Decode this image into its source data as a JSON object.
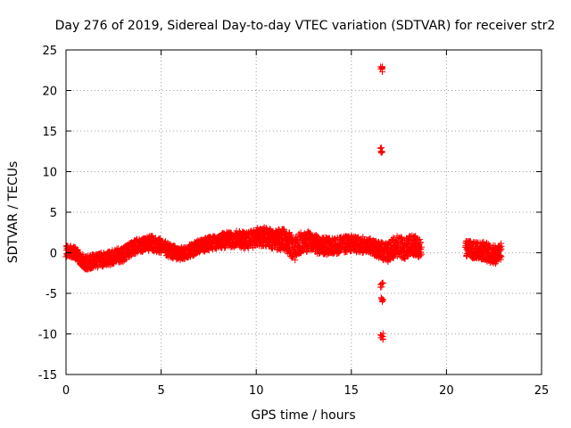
{
  "chart_data": {
    "type": "scatter",
    "title": "Day 276 of 2019, Sidereal Day-to-day VTEC variation (SDTVAR) for receiver str2",
    "xlabel": "GPS time / hours",
    "ylabel": "SDTVAR / TECUs",
    "xlim": [
      0,
      25
    ],
    "ylim": [
      -15,
      25
    ],
    "xticks": [
      "0",
      "5",
      "10",
      "15",
      "20",
      "25"
    ],
    "yticks": [
      "-15",
      "-10",
      "-5",
      "0",
      "5",
      "10",
      "15",
      "20",
      "25"
    ],
    "grid": true,
    "marker": "+",
    "series": [
      {
        "name": "SDTVAR",
        "color": "#ff0000",
        "trend": [
          [
            0.0,
            0.2
          ],
          [
            0.4,
            0.1
          ],
          [
            0.7,
            -0.5
          ],
          [
            1.0,
            -1.3
          ],
          [
            1.5,
            -1.0
          ],
          [
            2.0,
            -0.8
          ],
          [
            2.5,
            -0.5
          ],
          [
            3.0,
            -0.2
          ],
          [
            3.5,
            0.6
          ],
          [
            4.0,
            1.0
          ],
          [
            4.5,
            1.2
          ],
          [
            5.0,
            0.8
          ],
          [
            5.5,
            0.2
          ],
          [
            6.0,
            -0.1
          ],
          [
            6.5,
            0.2
          ],
          [
            7.0,
            0.8
          ],
          [
            7.5,
            1.1
          ],
          [
            8.0,
            1.4
          ],
          [
            8.5,
            1.6
          ],
          [
            9.0,
            1.7
          ],
          [
            9.5,
            1.5
          ],
          [
            10.0,
            1.9
          ],
          [
            10.5,
            2.0
          ],
          [
            11.0,
            1.6
          ],
          [
            11.5,
            1.7
          ],
          [
            12.0,
            0.5
          ],
          [
            12.5,
            1.5
          ],
          [
            13.0,
            1.2
          ],
          [
            13.5,
            0.8
          ],
          [
            14.0,
            0.7
          ],
          [
            14.5,
            1.0
          ],
          [
            15.0,
            1.1
          ],
          [
            15.5,
            1.0
          ],
          [
            16.0,
            0.8
          ],
          [
            16.3,
            0.5
          ],
          [
            16.9,
            0.0
          ],
          [
            17.3,
            0.8
          ],
          [
            17.8,
            0.5
          ],
          [
            18.3,
            1.0
          ],
          [
            18.6,
            0.6
          ],
          [
            21.0,
            0.5
          ],
          [
            21.5,
            0.3
          ],
          [
            22.0,
            0.2
          ],
          [
            22.5,
            -0.3
          ],
          [
            22.9,
            0.2
          ]
        ],
        "spread": [
          [
            0.0,
            0.7
          ],
          [
            1.5,
            0.9
          ],
          [
            3.0,
            0.9
          ],
          [
            5.0,
            0.9
          ],
          [
            7.0,
            0.8
          ],
          [
            9.0,
            1.0
          ],
          [
            11.0,
            1.3
          ],
          [
            12.0,
            1.5
          ],
          [
            13.0,
            1.2
          ],
          [
            15.0,
            1.0
          ],
          [
            16.5,
            1.0
          ],
          [
            17.5,
            1.4
          ],
          [
            18.6,
            1.2
          ],
          [
            21.0,
            1.0
          ],
          [
            22.5,
            1.2
          ],
          [
            22.9,
            1.0
          ]
        ],
        "gaps": [
          [
            18.7,
            21.0
          ]
        ],
        "outliers": [
          [
            16.6,
            22.6
          ],
          [
            16.6,
            12.7
          ],
          [
            16.6,
            -4.0
          ],
          [
            16.6,
            -5.9
          ],
          [
            16.6,
            -10.3
          ]
        ]
      }
    ]
  }
}
